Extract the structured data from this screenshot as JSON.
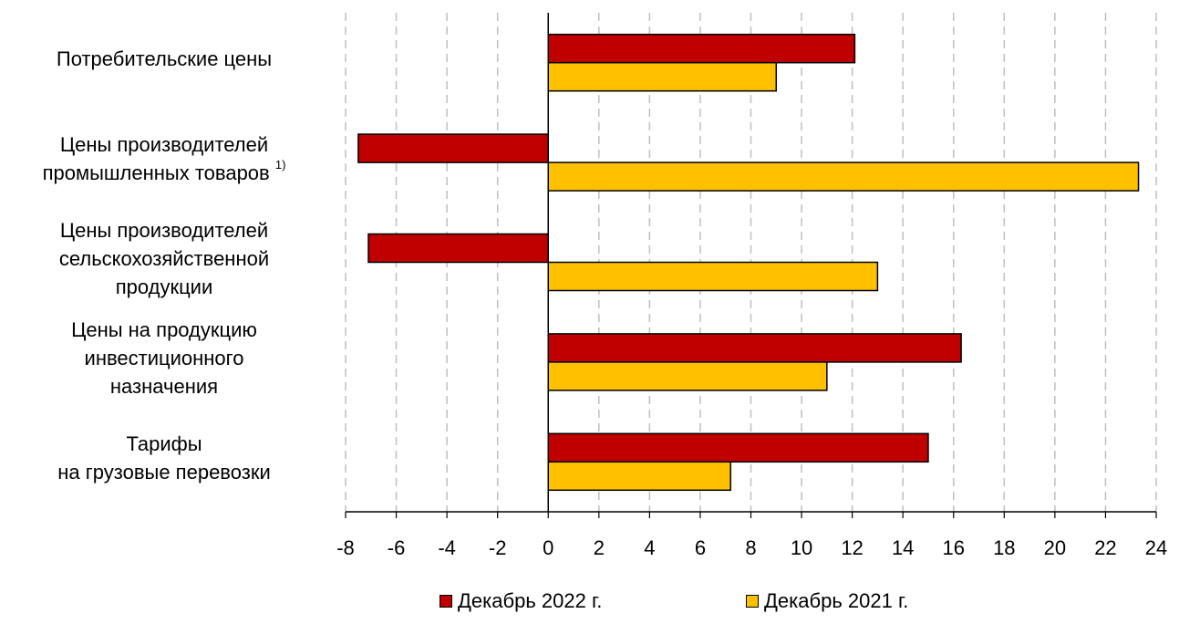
{
  "chart_data": {
    "type": "bar",
    "orientation": "horizontal",
    "categories": [
      {
        "lines": [
          "Потребительские цены"
        ],
        "sup": ""
      },
      {
        "lines": [
          "Цены производителей",
          "промышленных товаров"
        ],
        "sup": "1)"
      },
      {
        "lines": [
          "Цены производителей",
          "сельскохозяйственной",
          "продукции"
        ],
        "sup": ""
      },
      {
        "lines": [
          "Цены на продукцию",
          "инвестиционного",
          "назначения"
        ],
        "sup": ""
      },
      {
        "lines": [
          "Тарифы",
          "на грузовые перевозки"
        ],
        "sup": ""
      }
    ],
    "series": [
      {
        "name": "Декабрь 2022 г.",
        "color": "#C00000",
        "values": [
          12.1,
          -7.5,
          -7.1,
          16.3,
          15.0
        ]
      },
      {
        "name": "Декабрь 2021 г.",
        "color": "#FFC000",
        "values": [
          9.0,
          23.3,
          13.0,
          11.0,
          7.2
        ]
      }
    ],
    "xlim": [
      -8,
      24
    ],
    "xticks": [
      -8,
      -6,
      -4,
      -2,
      0,
      2,
      4,
      6,
      8,
      10,
      12,
      14,
      16,
      18,
      20,
      22,
      24
    ],
    "grid": "vertical-dashed",
    "legend_position": "bottom",
    "title": "",
    "xlabel": "",
    "ylabel": ""
  }
}
